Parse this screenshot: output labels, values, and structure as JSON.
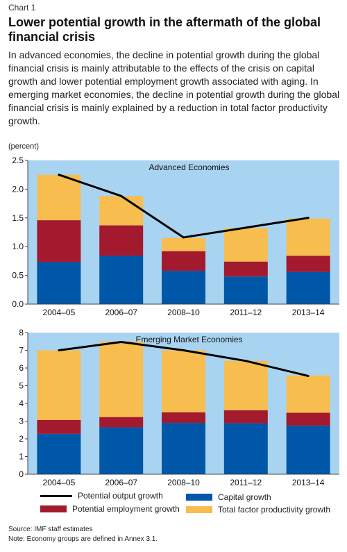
{
  "header": {
    "chart_label": "Chart 1",
    "title": "Lower potential growth in the aftermath of the global financial crisis",
    "subtitle": "In advanced economies, the decline in potential growth during the global financial crisis is mainly attributable to the effects of the crisis on capital growth and  lower potential employment growth associated with aging. In emerging market economies, the decline in potential growth during the global financial crisis is mainly explained by a reduction in total factor productivity growth.",
    "unit": "(percent)"
  },
  "colors": {
    "panel_bg": "#a9d4f1",
    "capital": "#0057a8",
    "employment": "#a3192d",
    "tfp": "#f7bd4f",
    "line": "#000000"
  },
  "chart_data": [
    {
      "type": "bar",
      "stacked": true,
      "title": "Advanced Economies",
      "categories": [
        "2004–05",
        "2006–07",
        "2008–10",
        "2011–12",
        "2013–14"
      ],
      "ylim": [
        0,
        2.5
      ],
      "yticks": [
        "0.0",
        "0.5",
        "1.0",
        "1.5",
        "2.0",
        "2.5"
      ],
      "series": [
        {
          "key": "capital",
          "name": "Capital growth",
          "values": [
            0.73,
            0.84,
            0.58,
            0.48,
            0.56
          ]
        },
        {
          "key": "employment",
          "name": "Potential employment growth",
          "values": [
            0.73,
            0.53,
            0.34,
            0.26,
            0.28
          ]
        },
        {
          "key": "tfp",
          "name": "Total factor productivity growth",
          "values": [
            0.79,
            0.51,
            0.23,
            0.58,
            0.65
          ]
        }
      ],
      "line": {
        "key": "line",
        "name": "Potential output growth",
        "values": [
          2.25,
          1.88,
          1.16,
          1.33,
          1.5
        ]
      }
    },
    {
      "type": "bar",
      "stacked": true,
      "title": "Emerging Market Economies",
      "categories": [
        "2004–05",
        "2006–07",
        "2008–10",
        "2011–12",
        "2013–14"
      ],
      "ylim": [
        0,
        8
      ],
      "yticks": [
        "0",
        "1",
        "2",
        "3",
        "4",
        "5",
        "6",
        "7",
        "8"
      ],
      "series": [
        {
          "key": "capital",
          "name": "Capital growth",
          "values": [
            2.28,
            2.65,
            2.9,
            2.88,
            2.75
          ]
        },
        {
          "key": "employment",
          "name": "Potential employment growth",
          "values": [
            0.78,
            0.58,
            0.6,
            0.73,
            0.72
          ]
        },
        {
          "key": "tfp",
          "name": "Total factor productivity growth",
          "values": [
            3.94,
            4.27,
            3.5,
            2.79,
            2.11
          ]
        }
      ],
      "line": {
        "key": "line",
        "name": "Potential output growth",
        "values": [
          7.0,
          7.47,
          7.0,
          6.4,
          5.55
        ]
      }
    }
  ],
  "legend": {
    "line": "Potential output growth",
    "employment": "Potential employment growth",
    "capital": "Capital growth",
    "tfp": "Total factor productivity growth"
  },
  "footer": {
    "source": "Source: IMF staff estimates",
    "note": "Note: Economy groups are defined in Annex 3.1."
  }
}
